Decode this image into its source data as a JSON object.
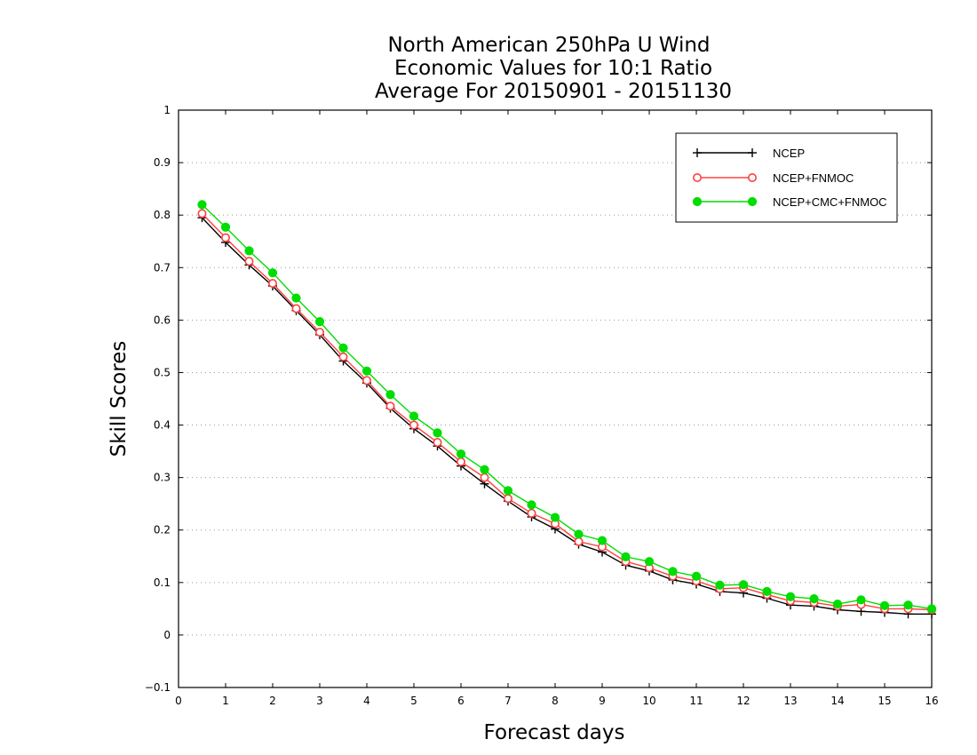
{
  "chart_data": {
    "type": "line",
    "title": [
      "North American 250hPa U Wind",
      "Economic Values for 10:1 Ratio",
      "Average For 20150901 - 20151130"
    ],
    "xlabel": "Forecast days",
    "ylabel": "Skill Scores",
    "xlim": [
      0,
      16
    ],
    "ylim": [
      -0.1,
      1
    ],
    "x_ticks": [
      0,
      1,
      2,
      3,
      4,
      5,
      6,
      7,
      8,
      9,
      10,
      11,
      12,
      13,
      14,
      15,
      16
    ],
    "y_ticks": [
      -0.1,
      0,
      0.1,
      0.2,
      0.3,
      0.4,
      0.5,
      0.6,
      0.7,
      0.8,
      0.9,
      1
    ],
    "y_tick_labels": [
      "−0.1",
      "0",
      "0.1",
      "0.2",
      "0.3",
      "0.4",
      "0.5",
      "0.6",
      "0.7",
      "0.8",
      "0.9",
      "1"
    ],
    "grid": "dotted horizontal",
    "legend_position": "top-right",
    "x": [
      0.5,
      1,
      1.5,
      2,
      2.5,
      3,
      3.5,
      4,
      4.5,
      5,
      5.5,
      6,
      6.5,
      7,
      7.5,
      8,
      8.5,
      9,
      9.5,
      10,
      10.5,
      11,
      11.5,
      12,
      12.5,
      13,
      13.5,
      14,
      14.5,
      15,
      15.5,
      16
    ],
    "series": [
      {
        "name": "NCEP",
        "color": "#000000",
        "marker": "plus",
        "values": [
          0.795,
          0.748,
          0.705,
          0.665,
          0.618,
          0.572,
          0.522,
          0.48,
          0.432,
          0.393,
          0.36,
          0.322,
          0.288,
          0.255,
          0.225,
          0.202,
          0.173,
          0.158,
          0.133,
          0.122,
          0.105,
          0.097,
          0.083,
          0.08,
          0.07,
          0.057,
          0.055,
          0.048,
          0.045,
          0.043,
          0.04,
          0.04
        ]
      },
      {
        "name": "NCEP+FNMOC",
        "color": "#ff4040",
        "marker": "open-circle",
        "values": [
          0.803,
          0.757,
          0.712,
          0.67,
          0.622,
          0.577,
          0.53,
          0.485,
          0.436,
          0.4,
          0.367,
          0.33,
          0.3,
          0.26,
          0.232,
          0.212,
          0.178,
          0.168,
          0.14,
          0.128,
          0.112,
          0.103,
          0.088,
          0.09,
          0.077,
          0.065,
          0.062,
          0.055,
          0.058,
          0.05,
          0.05,
          0.048
        ]
      },
      {
        "name": "NCEP+CMC+FNMOC",
        "color": "#00dd00",
        "marker": "filled-circle",
        "values": [
          0.82,
          0.777,
          0.732,
          0.69,
          0.642,
          0.597,
          0.547,
          0.503,
          0.458,
          0.417,
          0.385,
          0.345,
          0.315,
          0.275,
          0.248,
          0.224,
          0.192,
          0.18,
          0.149,
          0.14,
          0.121,
          0.112,
          0.095,
          0.096,
          0.083,
          0.073,
          0.069,
          0.059,
          0.067,
          0.056,
          0.057,
          0.05
        ]
      }
    ]
  }
}
